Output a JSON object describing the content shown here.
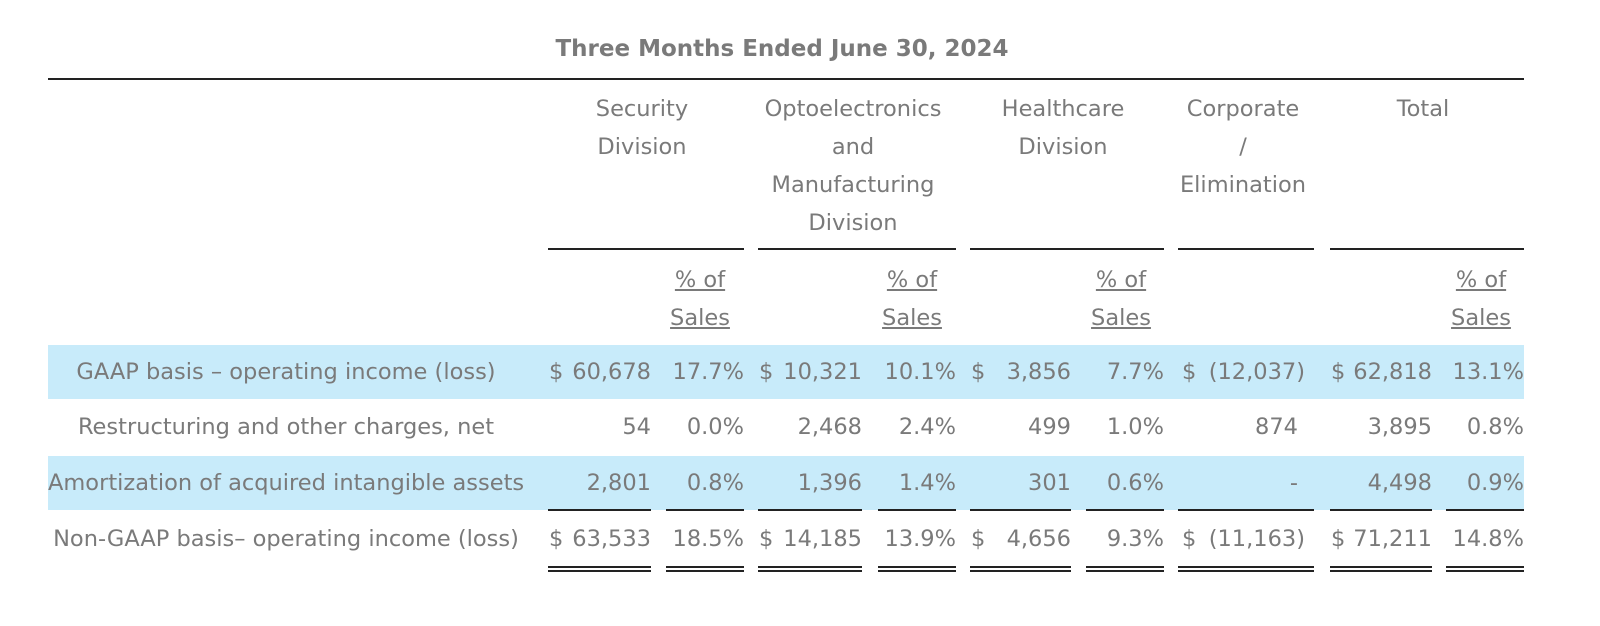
{
  "title": "Three Months Ended June 30, 2024",
  "columns": [
    {
      "name_lines": [
        "Security Division"
      ],
      "pct_lines": [
        "% of",
        "Sales"
      ]
    },
    {
      "name_lines": [
        "Optoelectronics",
        "and",
        "Manufacturing",
        "Division"
      ],
      "pct_lines": [
        "% of",
        "Sales"
      ]
    },
    {
      "name_lines": [
        "Healthcare",
        "Division"
      ],
      "pct_lines": [
        "% of",
        "Sales"
      ]
    },
    {
      "name_lines": [
        "Corporate",
        "/",
        "Elimination"
      ]
    },
    {
      "name_lines": [
        "Total"
      ],
      "pct_lines": [
        "% of",
        "Sales"
      ]
    }
  ],
  "rows": [
    {
      "label": "GAAP basis – operating income (loss)",
      "highlight": true,
      "values": [
        "$",
        "60,678",
        "17.7%",
        "$",
        "10,321",
        "10.1%",
        "$",
        "3,856",
        "7.7%",
        "$",
        "(12,037)",
        "$",
        "62,818",
        "13.1%"
      ]
    },
    {
      "label": "Restructuring and other charges, net",
      "highlight": false,
      "values": [
        "",
        "54",
        "0.0%",
        "",
        "2,468",
        "2.4%",
        "",
        "499",
        "1.0%",
        "",
        "874",
        "",
        "3,895",
        "0.8%"
      ]
    },
    {
      "label": "Amortization of acquired intangible assets",
      "highlight": true,
      "values": [
        "",
        "2,801",
        "0.8%",
        "",
        "1,396",
        "1.4%",
        "",
        "301",
        "0.6%",
        "",
        "-",
        "",
        "4,498",
        "0.9%"
      ]
    },
    {
      "label": "Non-GAAP basis– operating income (loss)",
      "highlight": false,
      "values": [
        "$",
        "63,533",
        "18.5%",
        "$",
        "14,185",
        "13.9%",
        "$",
        "4,656",
        "9.3%",
        "$",
        "(11,163)",
        "$",
        "71,211",
        "14.8%"
      ]
    }
  ],
  "colors": {
    "highlight": "#c8ebfa",
    "text": "#7a7a7a",
    "rule": "#222222"
  }
}
